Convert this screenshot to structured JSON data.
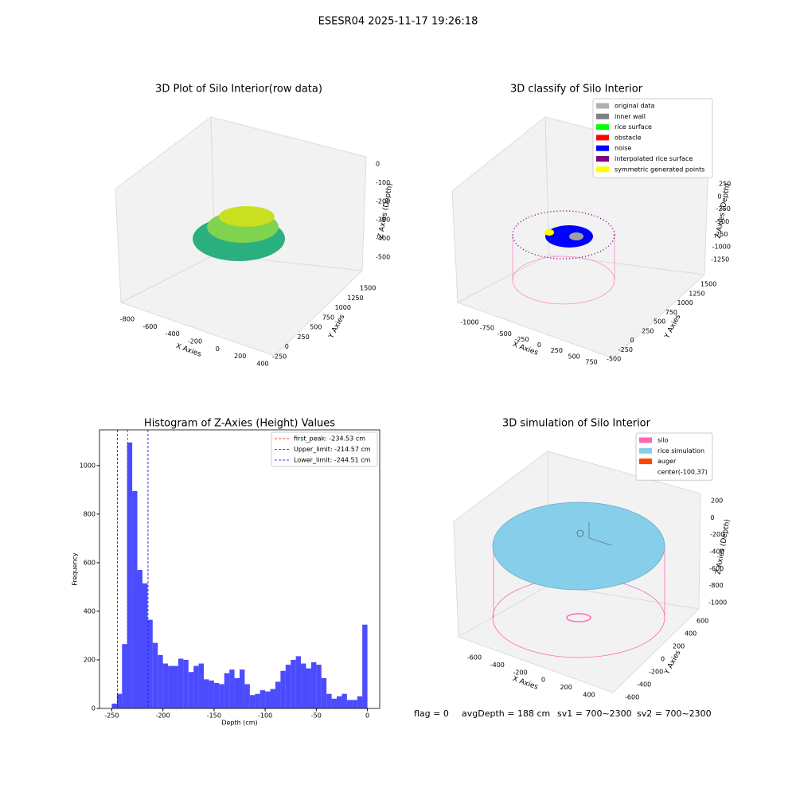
{
  "title": "ESESR04 2025-11-17 19:26:18",
  "chart_data": [
    {
      "type": "scatter3d",
      "title": "3D Plot of Silo Interior(row data)",
      "xlabel": "X Axies",
      "ylabel": "Y Axies",
      "zlabel": "Z Axies (Depth)",
      "xticks": [
        -800,
        -600,
        -400,
        -200,
        0,
        200,
        400
      ],
      "yticks": [
        -250,
        0,
        250,
        500,
        750,
        1000,
        1250,
        1500
      ],
      "zticks": [
        0,
        -100,
        -200,
        -300,
        -400,
        -500
      ]
    },
    {
      "type": "scatter3d",
      "title": "3D classify of Silo Interior",
      "xlabel": "X Axies",
      "ylabel": "Y Axies",
      "zlabel": "Z Axies (Depth)",
      "xticks": [
        -1000,
        -750,
        -500,
        -250,
        0,
        250,
        500,
        750
      ],
      "yticks": [
        -500,
        -250,
        0,
        250,
        500,
        750,
        1000,
        1250,
        1500
      ],
      "zticks": [
        250,
        0,
        -250,
        -500,
        -750,
        -1000,
        -1250
      ],
      "legend": [
        {
          "name": "original data",
          "color": "#b0b0b0"
        },
        {
          "name": "inner wall",
          "color": "#808080"
        },
        {
          "name": "rice surface",
          "color": "#00ff00"
        },
        {
          "name": "obstacle",
          "color": "#ff0000"
        },
        {
          "name": "noise",
          "color": "#0000ff"
        },
        {
          "name": "interpolated rice surface",
          "color": "#800080"
        },
        {
          "name": "symmetric generated points",
          "color": "#ffff00"
        }
      ]
    },
    {
      "type": "histogram",
      "title": "Histogram of Z-Axies (Height) Values",
      "xlabel": "Depth (cm)",
      "ylabel": "Frequency",
      "color": "#0000ff",
      "bins": [
        -250,
        -245,
        -240,
        -235,
        -230,
        -225,
        -220,
        -215,
        -210,
        -205,
        -200,
        -195,
        -190,
        -185,
        -180,
        -175,
        -170,
        -165,
        -160,
        -155,
        -150,
        -145,
        -140,
        -135,
        -130,
        -125,
        -120,
        -115,
        -110,
        -105,
        -100,
        -95,
        -90,
        -85,
        -80,
        -75,
        -70,
        -65,
        -60,
        -55,
        -50,
        -45,
        -40,
        -35,
        -30,
        -25,
        -20,
        -15,
        -10,
        -5,
        0
      ],
      "values": [
        20,
        60,
        265,
        1095,
        895,
        570,
        515,
        365,
        270,
        220,
        185,
        175,
        175,
        205,
        200,
        150,
        175,
        185,
        120,
        115,
        105,
        100,
        145,
        160,
        125,
        160,
        100,
        55,
        60,
        75,
        70,
        80,
        110,
        155,
        180,
        200,
        215,
        185,
        165,
        190,
        180,
        125,
        60,
        40,
        50,
        60,
        35,
        35,
        50,
        345
      ],
      "xlim": [
        -262,
        12
      ],
      "ylim": [
        0,
        1147
      ],
      "xticks": [
        -250,
        -200,
        -150,
        -100,
        -50,
        0
      ],
      "yticks": [
        0,
        200,
        400,
        600,
        800,
        1000
      ],
      "vlines": [
        {
          "name": "first_peak: -234.53 cm",
          "x": -234.53,
          "color": "#ff0000"
        },
        {
          "name": "Upper_limit: -214.57 cm",
          "x": -214.57,
          "color": "#0000ff"
        },
        {
          "name": "Lower_limit: -244.51 cm",
          "x": -244.51,
          "color": "#0000ff"
        }
      ]
    },
    {
      "type": "surface3d",
      "title": "3D simulation of Silo Interior",
      "xlabel": "X Axies",
      "ylabel": "Y Axies",
      "zlabel": "Z Axies (Depth)",
      "xticks": [
        -600,
        -400,
        -200,
        0,
        200,
        400
      ],
      "yticks": [
        -600,
        -400,
        -200,
        0,
        200,
        400,
        600
      ],
      "zticks": [
        200,
        0,
        -200,
        -400,
        -600,
        -800,
        -1000
      ],
      "legend": [
        {
          "name": "silo",
          "color": "#ff69b4"
        },
        {
          "name": "rice simulation",
          "color": "#87ceeb"
        },
        {
          "name": "auger",
          "color": "#ff4500"
        },
        {
          "name": "center(-100,37)",
          "color": null
        }
      ]
    }
  ],
  "footer": [
    "flag = 0",
    "avgDepth = 188 cm",
    "sv1 = 700~2300",
    "sv2 = 700~2300"
  ]
}
